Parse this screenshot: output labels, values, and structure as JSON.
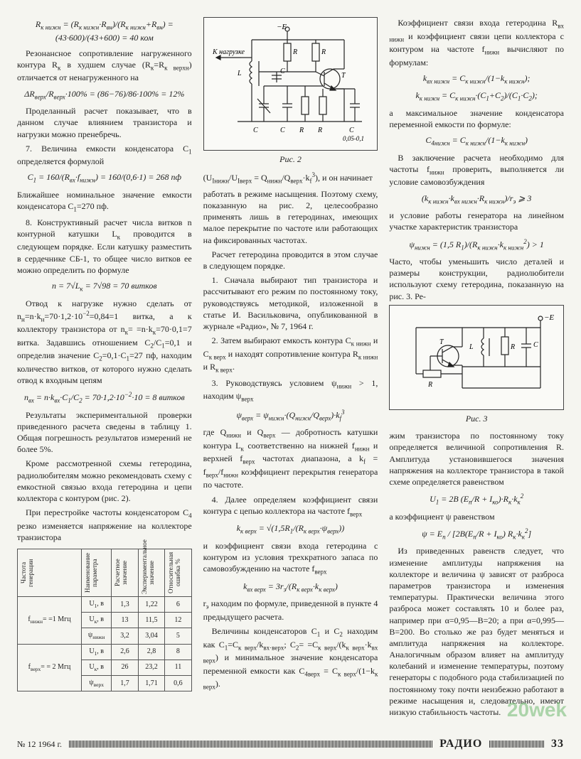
{
  "col1": {
    "eq1": "R<sub>к нижн</sub> = (R<sub>к нижн</sub>·R<sub>вн</sub>)/(R<sub>к нижн</sub>+R<sub>вн</sub>) = (43·600)/(43+600) = 40 ком",
    "p1": "Резонансное сопротивление нагруженного контура R<sub>к</sub> в худшем случае (R<sub>к</sub>=R<sub>к верхн</sub>) отличается от ненагруженного на",
    "eq2": "ΔR<sub>верх</sub>/R<sub>верх</sub>·100% = (86−76)/86·100% = 12%",
    "p2": "Проделанный расчет показывает, что в данном случае влиянием транзистора и нагрузки можно пренебречь.",
    "p3": "7. Величина емкости конденсатора C<sub>1</sub> определяется формулой",
    "eq3": "C<sub>1</sub> = 160/(R<sub>вх</sub>·f<sub>нижн</sub>) = 160/(0,6·1) = 268 пф",
    "p4": "Ближайшее номинальное значение емкости конденсатора C<sub>1</sub>=270 пф.",
    "p5": "8. Конструктивный расчет числа витков n контурной катушки L<sub>к</sub> проводится в следующем порядке. Если катушку разместить в сердечнике СБ-1, то общее число витков ее можно определить по формуле",
    "eq4": "n = 7√L<sub>к</sub> = 7√98 = 70 витков",
    "p6": "Отвод к нагрузке нужно сделать от n<sub>н</sub>=n·k<sub>н</sub>=70·1,2·10<sup>−2</sup>=0,84=1 витка, а к коллектору транзистора от n<sub>к</sub>= =n·k<sub>к</sub>=70·0,1=7 витка. Задавшись отношением C<sub>2</sub>/C<sub>1</sub>=0,1 и определив значение C<sub>2</sub>=0,1·C<sub>1</sub>=27 пф, находим количество витков, от которого нужно сделать отвод к входным цепям",
    "eq5": "n<sub>вх</sub> = n·k<sub>вх</sub>·C<sub>1</sub>/C<sub>2</sub> = 70·1,2·10<sup>−2</sup>·10 = 8 витков",
    "p7": "Результаты экспериментальной проверки приведенного расчета сведены в таблицу 1. Общая погрешность результатов измерений не более 5%.",
    "p8": "Кроме рассмотренной схемы гетеродина, радиолюбителям можно рекомендовать схему с емкостной связью входа гетеродина и цепи коллектора с контуром (рис. 2).",
    "p9": "При перестройке частоты конденсатором C<sub>4</sub> резко изменяется напряжение на коллекторе транзистора"
  },
  "table": {
    "headers": [
      "Частота генерации",
      "Наименование параметра",
      "Расчетное значение",
      "Экспериментальное значение",
      "Относительная ошибка %"
    ],
    "rows": [
      {
        "freq": "f<sub>нижн</sub>=\n=1 Мгц",
        "params": [
          "U<sub>1</sub>, в",
          "U<sub>к</sub>, в",
          "ψ<sub>нижн</sub>"
        ],
        "calc": [
          "1,3",
          "13",
          "3,2"
        ],
        "exp": [
          "1,22",
          "11,5",
          "3,04"
        ],
        "err": [
          "6",
          "12",
          "5"
        ]
      },
      {
        "freq": "f<sub>верх</sub>=\n= 2 Мгц",
        "params": [
          "U<sub>1</sub>, в",
          "U<sub>к</sub>, в",
          "ψ<sub>верх</sub>"
        ],
        "calc": [
          "2,6",
          "26",
          "1,7"
        ],
        "exp": [
          "2,8",
          "23,2",
          "1,71"
        ],
        "err": [
          "8",
          "11",
          "0,6"
        ]
      }
    ]
  },
  "col2": {
    "fig2_label": "Рис. 2",
    "fig2_parts": {
      "left": "К нагрузке",
      "top": "−E<sub>п</sub>",
      "r4": "R<sub>4</sub>",
      "r3": "R<sub>3</sub>",
      "lk": "L<sub>к</sub>",
      "c2": "C<sub>2</sub>",
      "c4": "C<sub>4</sub>",
      "c1": "C<sub>1</sub>",
      "r1": "R<sub>1</sub>",
      "r2": "R<sub>2</sub>",
      "c3": "C<sub>3</sub>",
      "val": "0,05-0,1",
      "t": "T"
    },
    "p1_eq": "(U<sub>Iнижн</sub>/U<sub>Iверх</sub> = Q<sub>нижн</sub>/Q<sub>верх</sub>·k<sub>f</sub><sup>3</sup>), и он начинает",
    "p1": "работать в режиме насыщения. Поэтому схему, показанную на рис. 2, целесообразно применять лишь в гетеродинах, имеющих малое перекрытие по частоте или работающих на фиксированных частотах.",
    "p2": "Расчет гетеродина проводится в этом случае в следующем порядке.",
    "p3": "1. Сначала выбирают тип транзистора и рассчитывают его режим по постоянному току, руководствуясь методикой, изложенной в статье И. Васильковича, опубликованной в журнале «Радио», № 7, 1964 г.",
    "p4": "2. Затем выбирают емкость контура C<sub>к нижн</sub> и C<sub>к верх</sub> и находят сопротивление контура R<sub>к нижн</sub> и R<sub>к верх</sub>.",
    "p5": "3. Руководствуясь условием ψ<sub>нижн</sub> > 1, находим ψ<sub>верх</sub>",
    "eq1": "ψ<sub>верх</sub> = ψ<sub>нижн</sub>·(Q<sub>нижн</sub>/Q<sub>верх</sub>)·k<sub>f</sub><sup>3</sup>",
    "p6": "где Q<sub>нижн</sub> и Q<sub>верх</sub> — добротность катушки контура L<sub>к</sub> соответственно на нижней f<sub>нижн</sub> и верхней f<sub>верх</sub> частотах диапазона, а k<sub>f</sub> = f<sub>верх</sub>/f<sub>нижн</sub> коэффициент перекрытия генератора по частоте.",
    "p7": "4. Далее определяем коэффициент связи контура с цепью коллектора на частоте f<sub>верх</sub>",
    "eq2": "k<sub>к верх</sub> = √(1,5R<sub>1</sub>/(R<sub>к верх</sub>·ψ<sub>верх</sub>))",
    "p8": "и коэффициент связи входа гетеродина с контуром из условия трехкратного запаса по самовозбуждению на частоте f<sub>верх</sub>",
    "eq3": "k<sub>вх верх</sub> = 3r<sub>э</sub>/(R<sub>к верх</sub>·k<sub>к верх</sub>)",
    "p9": "r<sub>э</sub> находим по формуле, приведенной в пункте 4 предыдущего расчета.",
    "p10": "Величины конденсаторов C<sub>1</sub> и C<sub>2</sub> находим как C<sub>1</sub>=C<sub>к верх</sub>/k<sub>вх·верх</sub>; C<sub>2</sub>= =C<sub>к верх</sub>/(k<sub>к верх</sub>·k<sub>вх верх</sub>) и минимальное значение конденсатора переменной емкости как C<sub>4верх</sub> = C<sub>к верх</sub>/(1−k<sub>к верх</sub>)."
  },
  "col3": {
    "p1": "Коэффициент связи входа гетеродина R<sub>вх нижн</sub> и коэффициент связи цепи коллектора с контуром на частоте f<sub>нижн</sub> вычисляют по формулам:",
    "eq1": "k<sub>вх нижн</sub> = C<sub>к нижн</sub>/(1−k<sub>к нижн</sub>);",
    "eq2": "k<sub>к нижн</sub> = C<sub>к нижн</sub>·(C<sub>1</sub>+C<sub>2</sub>)/(C<sub>1</sub>·C<sub>2</sub>);",
    "p2": "а максимальное значение конденсатора переменной емкости по формуле:",
    "eq3": "C<sub>4нижн</sub> = C<sub>к нижн</sub>/(1−k<sub>к нижн</sub>)",
    "p3": "В заключение расчета необходимо для частоты f<sub>нижн</sub> проверить, выполняется ли условие самовозбуждения",
    "eq4": "(k<sub>к нижн</sub>·k<sub>вх нижн</sub>·R<sub>к нижн</sub>)/r<sub>э</sub> ⩾ 3",
    "p4": "и условие работы генератора на линейном участке характеристик транзистора",
    "eq5": "ψ<sub>нижн</sub> = (1,5 R<sub>1</sub>)/(R<sub>к нижн</sub>·k<sub>к нижн</sub><sup>2</sup>) > 1",
    "p5": "Часто, чтобы уменьшить число деталей и размеры конструкции, радиолюбители используют схему гетеродина, показанную на рис. 3. Ре-",
    "fig3_label": "Рис. 3",
    "fig3_parts": {
      "top": "−E<sub>п</sub>",
      "lk": "L<sub>к</sub>",
      "rk": "R<sub>к</sub>",
      "cb": "C<sub>Б</sub>",
      "t": "T",
      "r": "R"
    },
    "p6": "жим транзистора по постоянному току определяется величиной сопротивления R. Амплитуда установившегося значения напряжения на коллекторе транзистора в такой схеме определяется равенством",
    "eq6": "U<sub>1</sub> = 2B (E<sub>п</sub>/R + I<sub>ко</sub>)·R<sub>к</sub>·k<sub>к</sub><sup>2</sup>",
    "p7": "а коэффициент ψ равенством",
    "eq7": "ψ = E<sub>п</sub> / [2B(E<sub>п</sub>/R + I<sub>ко</sub>) R<sub>к</sub>·k<sub>к</sub><sup>2</sup>]",
    "p8": "Из приведенных равенств следует, что изменение амплитуды напряжения на коллекторе и величина ψ зависят от разброса параметров транзистора и изменения температуры. Практически величина этого разброса может составлять 10 и более раз, например при α=0,95—B=20; а при α=0,995—B=200. Во столько же раз будет меняться и амплитуда напряжения на коллекторе. Аналогичным образом влияет на амплитуду колебаний и изменение температуры, поэтому генераторы с подобного рода стабилизацией по постоянному току почти неизбежно работают в режиме насыщения и, следовательно, имеют низкую стабильность частоты."
  },
  "footer": {
    "left": "№ 12 1964 г.",
    "brand": "РАДИО",
    "page": "33",
    "watermark": "20wek"
  }
}
